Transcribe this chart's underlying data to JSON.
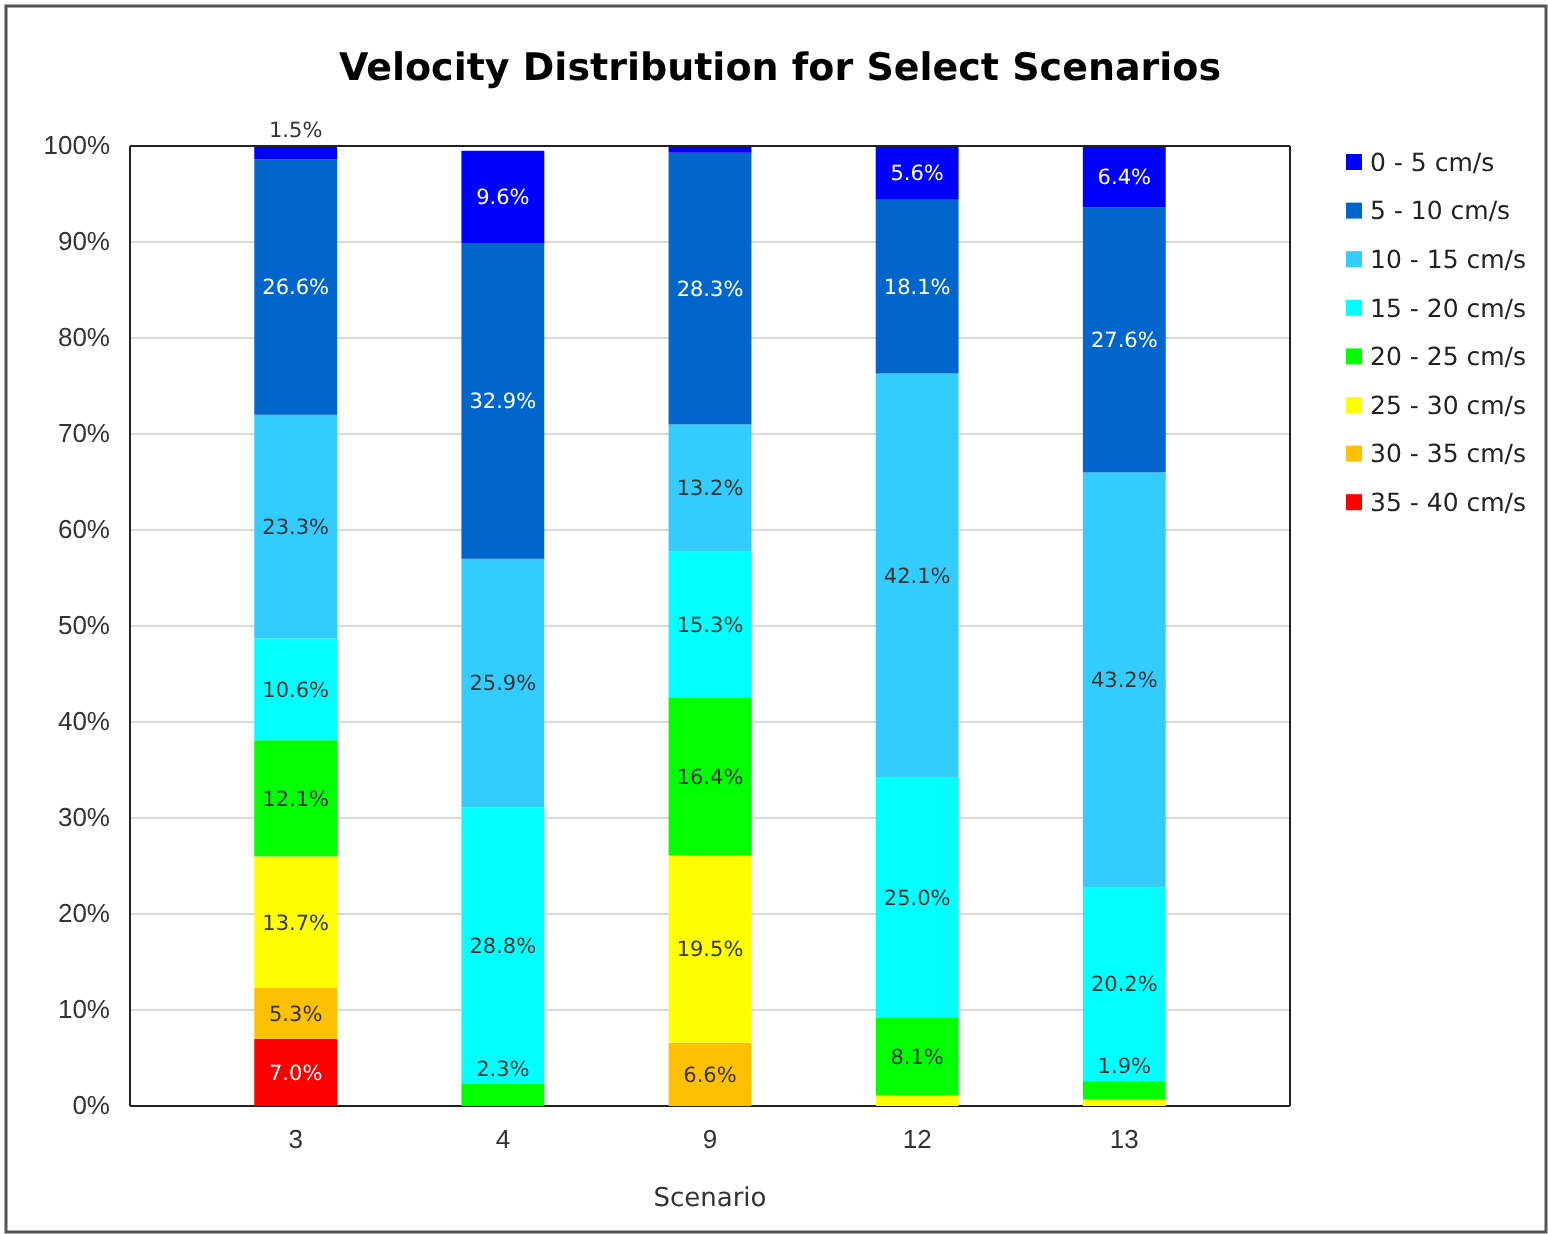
{
  "chart_data": {
    "type": "bar",
    "title": "Velocity Distribution for Select Scenarios",
    "xlabel": "Scenario",
    "categories": [
      "3",
      "4",
      "9",
      "12",
      "13"
    ],
    "stacked": true,
    "ylim": [
      0,
      100
    ],
    "yticks": [
      {
        "value": 0,
        "label": "0%"
      },
      {
        "value": 10,
        "label": "10%"
      },
      {
        "value": 20,
        "label": "20%"
      },
      {
        "value": 30,
        "label": "30%"
      },
      {
        "value": 40,
        "label": "40%"
      },
      {
        "value": 50,
        "label": "50%"
      },
      {
        "value": 60,
        "label": "60%"
      },
      {
        "value": 70,
        "label": "70%"
      },
      {
        "value": 80,
        "label": "80%"
      },
      {
        "value": 90,
        "label": "90%"
      },
      {
        "value": 100,
        "label": "100%"
      }
    ],
    "grid": "y",
    "legend": "right",
    "series": [
      {
        "name": "35 - 40 cm/s",
        "color": "#ff0000",
        "values": [
          7.0,
          null,
          null,
          null,
          null
        ],
        "value_labels": [
          "7.0%",
          null,
          null,
          null,
          null
        ]
      },
      {
        "name": "30 - 35 cm/s",
        "color": "#ffc000",
        "values": [
          5.3,
          null,
          6.6,
          null,
          null
        ],
        "value_labels": [
          "5.3%",
          null,
          "6.6%",
          null,
          null
        ]
      },
      {
        "name": "25 - 30 cm/s",
        "color": "#ffff00",
        "values": [
          13.7,
          null,
          19.5,
          1.1,
          0.7
        ],
        "value_labels": [
          "13.7%",
          null,
          "19.5%",
          null,
          null
        ]
      },
      {
        "name": "20 - 25 cm/s",
        "color": "#00ff00",
        "values": [
          12.1,
          2.3,
          16.4,
          8.1,
          1.9
        ],
        "value_labels": [
          "12.1%",
          "2.3%",
          "16.4%",
          "8.1%",
          "1.9%"
        ]
      },
      {
        "name": "15 - 20 cm/s",
        "color": "#00ffff",
        "values": [
          10.6,
          28.8,
          15.3,
          25.0,
          20.2
        ],
        "value_labels": [
          "10.6%",
          "28.8%",
          "15.3%",
          "25.0%",
          "20.2%"
        ]
      },
      {
        "name": "10 - 15 cm/s",
        "color": "#33ccff",
        "values": [
          23.3,
          25.9,
          13.2,
          42.1,
          43.2
        ],
        "value_labels": [
          "23.3%",
          "25.9%",
          "13.2%",
          "42.1%",
          "43.2%"
        ]
      },
      {
        "name": "5 - 10 cm/s",
        "color": "#0066cc",
        "values": [
          26.6,
          32.9,
          28.3,
          18.1,
          27.6
        ],
        "value_labels": [
          "26.6%",
          "32.9%",
          "28.3%",
          "18.1%",
          "27.6%"
        ]
      },
      {
        "name": "0 - 5 cm/s",
        "color": "#0000ff",
        "values": [
          1.5,
          9.6,
          0.7,
          5.6,
          6.4
        ],
        "value_labels": [
          "1.5%",
          "9.6%",
          null,
          "5.6%",
          "6.4%"
        ]
      }
    ]
  }
}
